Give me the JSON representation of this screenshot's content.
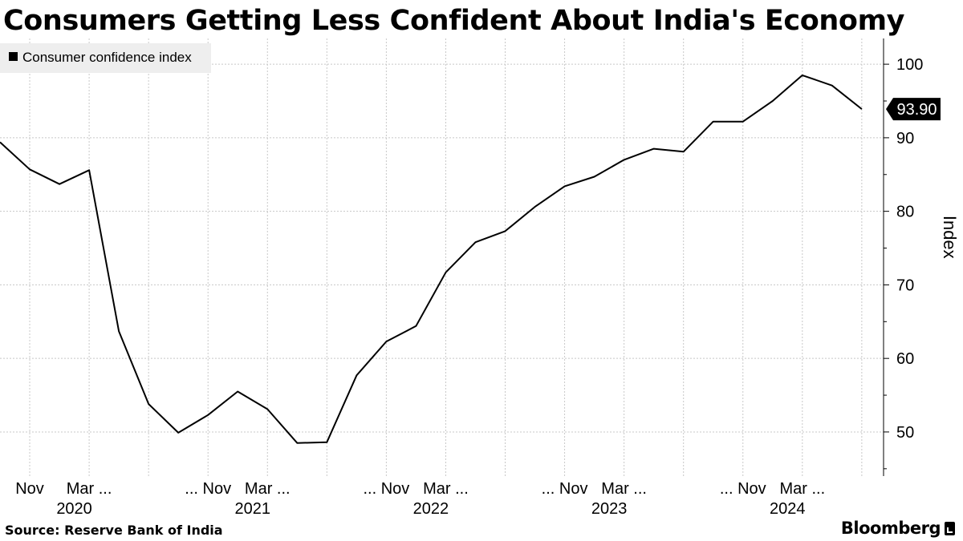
{
  "title": "Consumers Getting Less Confident About India's Economy",
  "footer": {
    "source": "Source: Reserve Bank of India",
    "brand": "Bloomberg"
  },
  "chart_data": {
    "type": "line",
    "title": "Consumers Getting Less Confident About India's Economy",
    "xlabel": "",
    "ylabel": "Index",
    "ylim": [
      44,
      103.5
    ],
    "yticks": [
      50,
      60,
      70,
      80,
      90,
      100
    ],
    "grid": true,
    "legend": {
      "placement": "top-left",
      "entries": [
        "Consumer confidence index"
      ]
    },
    "series": [
      {
        "name": "Consumer confidence index",
        "color": "#000000",
        "x": [
          "Sep 2019",
          "Nov 2019",
          "Jan 2020",
          "Mar 2020",
          "May 2020",
          "Jul 2020",
          "Sep 2020",
          "Nov 2020",
          "Jan 2021",
          "Mar 2021",
          "May 2021",
          "Jul 2021",
          "Sep 2021",
          "Nov 2021",
          "Jan 2022",
          "Mar 2022",
          "May 2022",
          "Jul 2022",
          "Sep 2022",
          "Nov 2022",
          "Jan 2023",
          "Mar 2023",
          "May 2023",
          "Jul 2023",
          "Sep 2023",
          "Nov 2023",
          "Jan 2024",
          "Mar 2024",
          "May 2024",
          "Jul 2024"
        ],
        "values": [
          89.4,
          85.7,
          83.7,
          85.6,
          63.7,
          53.8,
          49.9,
          52.3,
          55.5,
          53.1,
          48.5,
          48.6,
          57.7,
          62.3,
          64.4,
          71.7,
          75.8,
          77.3,
          80.6,
          83.4,
          84.7,
          87.0,
          88.5,
          88.1,
          92.2,
          92.2,
          95.0,
          98.5,
          97.1,
          93.9
        ]
      }
    ],
    "callout": "93.90",
    "x_tick_labels": [
      {
        "label": "Nov",
        "index": 1
      },
      {
        "label": "Mar ...",
        "index": 3
      },
      {
        "label": "... Nov",
        "index": 7
      },
      {
        "label": "Mar ...",
        "index": 9
      },
      {
        "label": "... Nov",
        "index": 13
      },
      {
        "label": "Mar ...",
        "index": 15
      },
      {
        "label": "... Nov",
        "index": 19
      },
      {
        "label": "Mar ...",
        "index": 21
      },
      {
        "label": "... Nov",
        "index": 25
      },
      {
        "label": "Mar ...",
        "index": 27
      }
    ],
    "year_labels": [
      {
        "label": "2020",
        "index": 2.5
      },
      {
        "label": "2021",
        "index": 8.5
      },
      {
        "label": "2022",
        "index": 14.5
      },
      {
        "label": "2023",
        "index": 20.5
      },
      {
        "label": "2024",
        "index": 26.5
      }
    ]
  }
}
